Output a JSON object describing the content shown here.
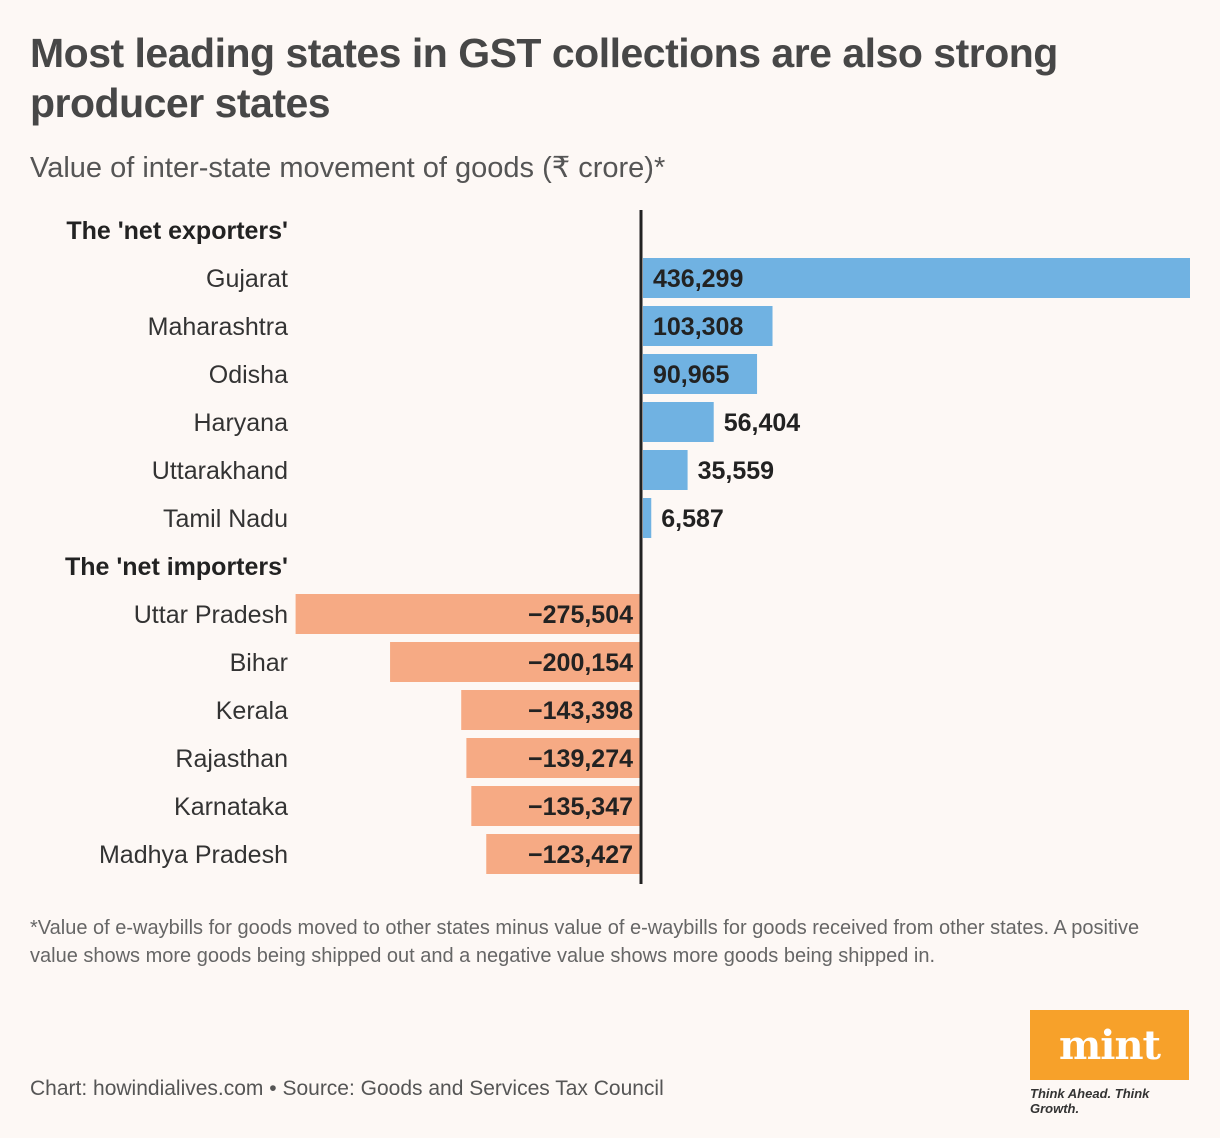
{
  "title": "Most leading states in GST collections are also strong producer states",
  "subtitle": "Value of inter-state movement of goods (₹ crore)*",
  "footnote": "*Value of e-waybills for goods moved to other states minus value of e-waybills for goods received from other states. A positive value shows more goods being shipped out and a negative value shows more goods being shipped in.",
  "source": "Chart: howindialives.com • Source: Goods and Services Tax Council",
  "logo": {
    "text": "mint",
    "tagline": "Think Ahead. Think Growth."
  },
  "colors": {
    "positive": "#70b2e2",
    "negative": "#f6aa84",
    "axis": "#222222"
  },
  "chart_data": {
    "type": "bar",
    "orientation": "horizontal",
    "groups": [
      {
        "label": "The 'net exporters'",
        "items": [
          {
            "category": "Gujarat",
            "value": 436299,
            "label": "436,299"
          },
          {
            "category": "Maharashtra",
            "value": 103308,
            "label": "103,308"
          },
          {
            "category": "Odisha",
            "value": 90965,
            "label": "90,965"
          },
          {
            "category": "Haryana",
            "value": 56404,
            "label": "56,404"
          },
          {
            "category": "Uttarakhand",
            "value": 35559,
            "label": "35,559"
          },
          {
            "category": "Tamil Nadu",
            "value": 6587,
            "label": "6,587"
          }
        ]
      },
      {
        "label": "The 'net importers'",
        "items": [
          {
            "category": "Uttar Pradesh",
            "value": -275504,
            "label": "−275,504"
          },
          {
            "category": "Bihar",
            "value": -200154,
            "label": "−200,154"
          },
          {
            "category": "Kerala",
            "value": -143398,
            "label": "−143,398"
          },
          {
            "category": "Rajasthan",
            "value": -139274,
            "label": "−139,274"
          },
          {
            "category": "Karnataka",
            "value": -135347,
            "label": "−135,347"
          },
          {
            "category": "Madhya Pradesh",
            "value": -123427,
            "label": "−123,427"
          }
        ]
      }
    ],
    "xlim": [
      -275504,
      436299
    ]
  }
}
